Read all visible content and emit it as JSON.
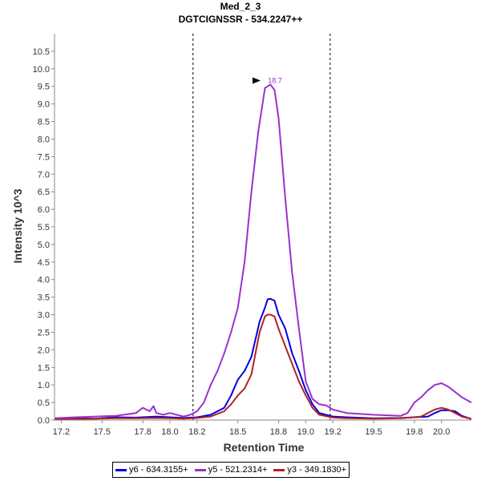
{
  "chart_data": {
    "type": "line",
    "title": "Med_2_3",
    "subtitle": "DGTCIGNSSR - 534.2247++",
    "xlabel": "Retention Time",
    "ylabel": "Intensity 10^3",
    "xlim": [
      17.15,
      20.22
    ],
    "ylim": [
      0,
      11.0
    ],
    "xticks": [
      17.2,
      17.5,
      17.8,
      18.0,
      18.2,
      18.5,
      18.8,
      19.0,
      19.2,
      19.5,
      19.8,
      20.0
    ],
    "xtick_labels": [
      "17.2",
      "17.5",
      "17.8",
      "18.0",
      "18.2",
      "18.5",
      "18.8",
      "19.0",
      "19.2",
      "19.5",
      "19.8",
      "20.0"
    ],
    "yticks": [
      0.0,
      0.5,
      1.0,
      1.5,
      2.0,
      2.5,
      3.0,
      3.5,
      4.0,
      4.5,
      5.0,
      5.5,
      6.0,
      6.5,
      7.0,
      7.5,
      8.0,
      8.5,
      9.0,
      9.5,
      10.0,
      10.5
    ],
    "ytick_labels": [
      "0.0",
      "0.5",
      "1.0",
      "1.5",
      "2.0",
      "2.5",
      "3.0",
      "3.5",
      "4.0",
      "4.5",
      "5.0",
      "5.5",
      "6.0",
      "6.5",
      "7.0",
      "7.5",
      "8.0",
      "8.5",
      "9.0",
      "9.5",
      "10.0",
      "10.5"
    ],
    "integration_bounds": [
      18.17,
      19.18
    ],
    "peak_annotation": {
      "x": 18.75,
      "y": 9.55,
      "label": "18.7",
      "color": "#9932CC"
    },
    "series": [
      {
        "name": "y6 - 634.3155+",
        "color": "#0000E0",
        "x": [
          17.15,
          17.3,
          17.45,
          17.6,
          17.75,
          17.9,
          18.0,
          18.1,
          18.2,
          18.3,
          18.4,
          18.45,
          18.5,
          18.55,
          18.6,
          18.63,
          18.66,
          18.7,
          18.72,
          18.74,
          18.77,
          18.8,
          18.85,
          18.9,
          18.95,
          19.0,
          19.05,
          19.1,
          19.2,
          19.3,
          19.5,
          19.7,
          19.9,
          19.95,
          20.0,
          20.05,
          20.1,
          20.15,
          20.22
        ],
        "values": [
          0.03,
          0.05,
          0.04,
          0.08,
          0.07,
          0.1,
          0.08,
          0.06,
          0.08,
          0.15,
          0.35,
          0.7,
          1.15,
          1.4,
          1.8,
          2.3,
          2.8,
          3.2,
          3.44,
          3.45,
          3.4,
          3.0,
          2.6,
          1.9,
          1.4,
          0.85,
          0.45,
          0.2,
          0.1,
          0.08,
          0.05,
          0.06,
          0.1,
          0.2,
          0.28,
          0.28,
          0.25,
          0.12,
          0.03
        ]
      },
      {
        "name": "y5 - 521.2314+",
        "color": "#9932CC",
        "x": [
          17.15,
          17.3,
          17.45,
          17.6,
          17.75,
          17.8,
          17.85,
          17.88,
          17.9,
          17.95,
          18.0,
          18.1,
          18.15,
          18.2,
          18.25,
          18.3,
          18.35,
          18.4,
          18.45,
          18.5,
          18.55,
          18.6,
          18.65,
          18.7,
          18.72,
          18.74,
          18.77,
          18.8,
          18.85,
          18.9,
          18.95,
          19.0,
          19.05,
          19.1,
          19.15,
          19.2,
          19.3,
          19.5,
          19.7,
          19.75,
          19.8,
          19.85,
          19.9,
          19.95,
          20.0,
          20.05,
          20.1,
          20.15,
          20.22
        ],
        "values": [
          0.05,
          0.08,
          0.1,
          0.12,
          0.2,
          0.35,
          0.25,
          0.4,
          0.2,
          0.15,
          0.2,
          0.1,
          0.15,
          0.25,
          0.5,
          1.0,
          1.4,
          1.9,
          2.5,
          3.2,
          4.5,
          6.5,
          8.2,
          9.45,
          9.5,
          9.55,
          9.4,
          8.6,
          6.3,
          4.2,
          2.6,
          1.1,
          0.6,
          0.45,
          0.42,
          0.3,
          0.2,
          0.15,
          0.12,
          0.2,
          0.5,
          0.65,
          0.85,
          1.0,
          1.05,
          0.95,
          0.8,
          0.65,
          0.5
        ]
      },
      {
        "name": "y3 - 349.1830+",
        "color": "#B22222",
        "x": [
          17.15,
          17.3,
          17.45,
          17.6,
          17.75,
          17.9,
          18.0,
          18.1,
          18.2,
          18.3,
          18.4,
          18.45,
          18.5,
          18.55,
          18.6,
          18.63,
          18.66,
          18.7,
          18.72,
          18.74,
          18.77,
          18.8,
          18.85,
          18.9,
          18.95,
          19.0,
          19.05,
          19.1,
          19.2,
          19.3,
          19.5,
          19.7,
          19.85,
          19.9,
          19.95,
          20.0,
          20.05,
          20.1,
          20.15,
          20.22
        ],
        "values": [
          0.02,
          0.03,
          0.04,
          0.05,
          0.05,
          0.06,
          0.05,
          0.04,
          0.06,
          0.1,
          0.25,
          0.45,
          0.7,
          0.9,
          1.3,
          1.9,
          2.5,
          2.95,
          3.0,
          3.0,
          2.95,
          2.6,
          2.1,
          1.6,
          1.1,
          0.7,
          0.35,
          0.15,
          0.07,
          0.05,
          0.04,
          0.05,
          0.1,
          0.2,
          0.3,
          0.35,
          0.3,
          0.2,
          0.1,
          0.03
        ]
      }
    ]
  }
}
